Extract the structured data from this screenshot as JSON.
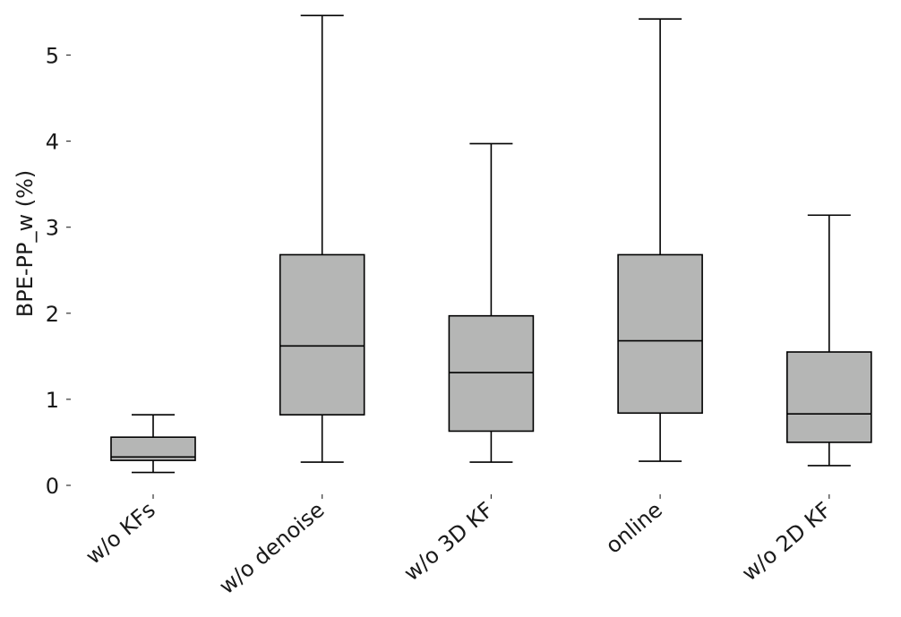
{
  "chart_data": {
    "type": "box",
    "title": "",
    "xlabel": "",
    "ylabel": "BPE-PP_w (%)",
    "ylim": [
      0,
      5.5
    ],
    "yticks": [
      0,
      1,
      2,
      3,
      4,
      5
    ],
    "grid": false,
    "legend": "none",
    "box_color": "#b5b6b5",
    "line_color": "#000000",
    "categories": [
      "w/o KFs",
      "w/o denoise",
      "w/o 3D KF",
      "online",
      "w/o 2D KF"
    ],
    "boxes": [
      {
        "category": "w/o KFs",
        "whisker_low": 0.15,
        "q1": 0.29,
        "median": 0.33,
        "q3": 0.56,
        "whisker_high": 0.82
      },
      {
        "category": "w/o denoise",
        "whisker_low": 0.27,
        "q1": 0.82,
        "median": 1.62,
        "q3": 2.68,
        "whisker_high": 5.46
      },
      {
        "category": "w/o 3D KF",
        "whisker_low": 0.27,
        "q1": 0.63,
        "median": 1.31,
        "q3": 1.97,
        "whisker_high": 3.97
      },
      {
        "category": "online",
        "whisker_low": 0.28,
        "q1": 0.84,
        "median": 1.68,
        "q3": 2.68,
        "whisker_high": 5.42
      },
      {
        "category": "w/o 2D KF",
        "whisker_low": 0.23,
        "q1": 0.5,
        "median": 0.83,
        "q3": 1.55,
        "whisker_high": 3.14
      }
    ]
  }
}
